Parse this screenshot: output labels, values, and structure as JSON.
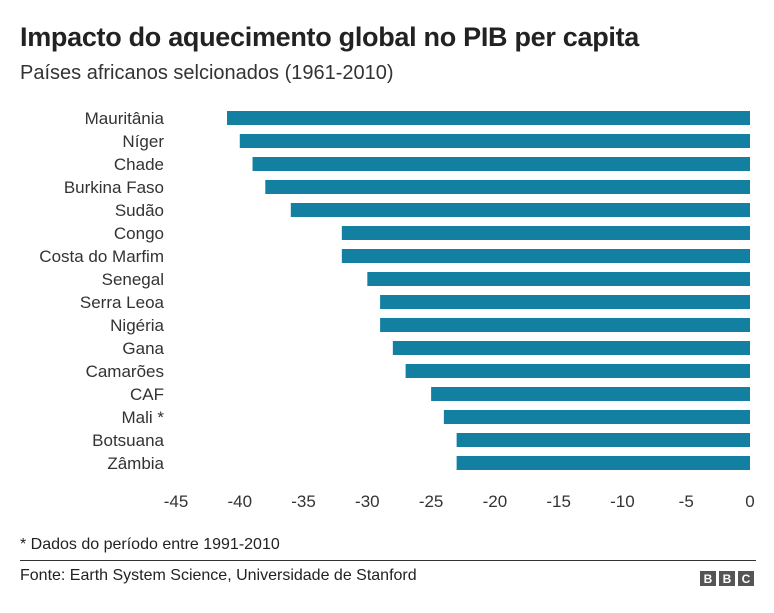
{
  "chart_data": {
    "type": "bar",
    "orientation": "horizontal",
    "title": "Impacto do aquecimento global no PIB per capita",
    "subtitle": "Países africanos selcionados (1961-2010)",
    "categories": [
      "Mauritânia",
      "Níger",
      "Chade",
      "Burkina Faso",
      "Sudão",
      "Congo",
      "Costa do Marfim",
      "Senegal",
      "Serra Leoa",
      "Nigéria",
      "Gana",
      "Camarões",
      "CAF",
      "Mali *",
      "Botsuana",
      "Zâmbia"
    ],
    "values": [
      -41,
      -40,
      -39,
      -38,
      -36,
      -32,
      -32,
      -30,
      -29,
      -29,
      -28,
      -27,
      -25,
      -24,
      -23,
      -23
    ],
    "xlim": [
      -45,
      0
    ],
    "xticks": [
      "-45",
      "-40",
      "-35",
      "-30",
      "-25",
      "-20",
      "-15",
      "-10",
      "-5",
      "0"
    ],
    "xtick_values": [
      -45,
      -40,
      -35,
      -30,
      -25,
      -20,
      -15,
      -10,
      -5,
      0
    ],
    "grid": false,
    "bar_color": "#1380a1"
  },
  "footnote": "* Dados do período entre 1991-2010",
  "source": "Fonte: Earth System Science, Universidade de Stanford",
  "logo": [
    "B",
    "B",
    "C"
  ]
}
